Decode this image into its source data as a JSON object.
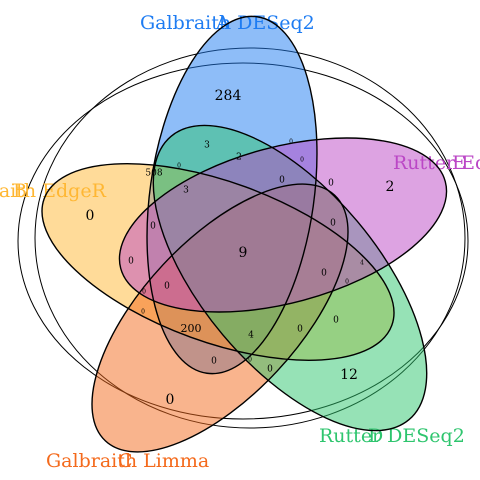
{
  "sets": [
    {
      "id": "A",
      "label": "Galbraith DESeq2",
      "overlay_letter": "A",
      "color": "#1E7CF2"
    },
    {
      "id": "B",
      "label": "Galbraith EdgeR",
      "overlay_letter": "B",
      "color": "#FFB733"
    },
    {
      "id": "C",
      "label": "Galbraith Limma",
      "overlay_letter": "C",
      "color": "#F46A1C"
    },
    {
      "id": "D",
      "label": "Rutter DESeq2",
      "overlay_letter": "D",
      "color": "#2EC56E"
    },
    {
      "id": "E",
      "label": "Rutter EdgeR",
      "overlay_letter": "E",
      "color": "#BB47C6"
    }
  ],
  "regions": [
    {
      "value": "284"
    },
    {
      "value": "0"
    },
    {
      "value": "2"
    },
    {
      "value": "12"
    },
    {
      "value": "0"
    },
    {
      "value": "9"
    },
    {
      "value": "508"
    },
    {
      "value": "200"
    },
    {
      "value": "3"
    },
    {
      "value": "2"
    },
    {
      "value": "0"
    },
    {
      "value": "3"
    },
    {
      "value": "0"
    },
    {
      "value": "0"
    },
    {
      "value": "0"
    },
    {
      "value": "0"
    },
    {
      "value": "0"
    },
    {
      "value": "0"
    },
    {
      "value": "0"
    },
    {
      "value": "0"
    },
    {
      "value": "4"
    },
    {
      "value": "4"
    },
    {
      "value": "0"
    },
    {
      "value": "0"
    },
    {
      "value": "0"
    },
    {
      "value": "0"
    },
    {
      "value": "0"
    },
    {
      "value": "0"
    },
    {
      "value": "0"
    },
    {
      "value": "0"
    },
    {
      "value": "0"
    }
  ]
}
